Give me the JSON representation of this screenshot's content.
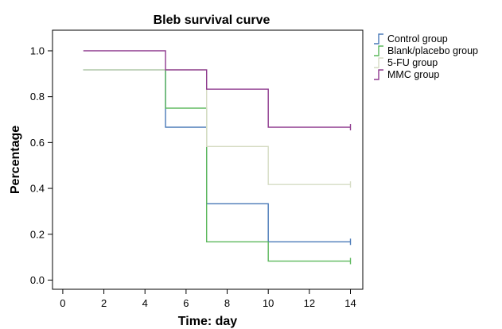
{
  "chart_data": {
    "type": "line",
    "step": true,
    "title": "Bleb survival curve",
    "xlabel": "Time: day",
    "ylabel": "Percentage",
    "xlim": [
      -0.5,
      14.6
    ],
    "ylim": [
      -0.04,
      1.09
    ],
    "x_ticks": [
      0,
      2,
      4,
      6,
      8,
      10,
      12,
      14
    ],
    "y_ticks": [
      "0.0",
      "0.2",
      "0.4",
      "0.6",
      "0.8",
      "1.0"
    ],
    "grid": false,
    "legend_position": "top-right",
    "series": [
      {
        "name": "Control group",
        "color": "#4a7ab8",
        "x": [
          1,
          5,
          7,
          10,
          14
        ],
        "y": [
          0.917,
          0.667,
          0.333,
          0.167,
          0.167
        ],
        "censored_at": [
          14
        ]
      },
      {
        "name": "Blank/placebo group",
        "color": "#5cb85c",
        "x": [
          1,
          5,
          7,
          10,
          14
        ],
        "y": [
          0.917,
          0.75,
          0.167,
          0.083,
          0.083
        ],
        "censored_at": [
          14
        ]
      },
      {
        "name": "5-FU group",
        "color": "#d6dcc4",
        "x": [
          1,
          5,
          7,
          10,
          14
        ],
        "y": [
          0.917,
          0.917,
          0.583,
          0.417,
          0.417
        ],
        "censored_at": [
          14
        ]
      },
      {
        "name": "MMC group",
        "color": "#8e3a8e",
        "x": [
          1,
          5,
          7,
          10,
          14
        ],
        "y": [
          1.0,
          0.917,
          0.833,
          0.667,
          0.667
        ],
        "censored_at": [
          14
        ]
      }
    ]
  }
}
